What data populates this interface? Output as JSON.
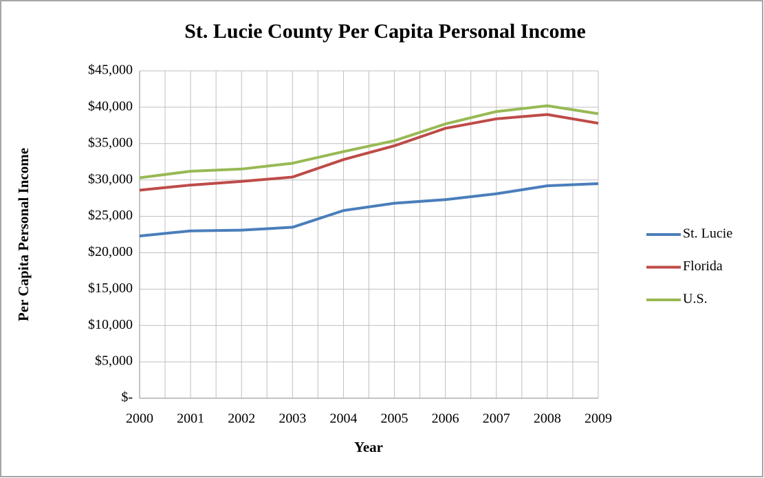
{
  "chart_data": {
    "type": "line",
    "title": "St. Lucie County Per Capita Personal Income",
    "x_label": "Year",
    "y_label": "Per Capita Personal Income",
    "categories": [
      "2000",
      "2001",
      "2002",
      "2003",
      "2004",
      "2005",
      "2006",
      "2007",
      "2008",
      "2009"
    ],
    "series": [
      {
        "name": "St. Lucie",
        "color": "#4a7ebb",
        "values": [
          22300,
          23000,
          23100,
          23500,
          25800,
          26800,
          27300,
          28100,
          29200,
          29500
        ]
      },
      {
        "name": "Florida",
        "color": "#be4b48",
        "values": [
          28600,
          29300,
          29800,
          30400,
          32800,
          34700,
          37100,
          38400,
          39000,
          37800
        ]
      },
      {
        "name": "U.S.",
        "color": "#98b954",
        "values": [
          30300,
          31200,
          31500,
          32300,
          33900,
          35400,
          37700,
          39400,
          40200,
          39100
        ]
      }
    ],
    "ylim": [
      0,
      45000
    ],
    "yticks": [
      {
        "value": 0,
        "label": "$-"
      },
      {
        "value": 5000,
        "label": "$5,000"
      },
      {
        "value": 10000,
        "label": "$10,000"
      },
      {
        "value": 15000,
        "label": "$15,000"
      },
      {
        "value": 20000,
        "label": "$20,000"
      },
      {
        "value": 25000,
        "label": "$25,000"
      },
      {
        "value": 30000,
        "label": "$30,000"
      },
      {
        "value": 35000,
        "label": "$35,000"
      },
      {
        "value": 40000,
        "label": "$40,000"
      },
      {
        "value": 45000,
        "label": "$45,000"
      }
    ],
    "grid": true,
    "legend": "right"
  }
}
